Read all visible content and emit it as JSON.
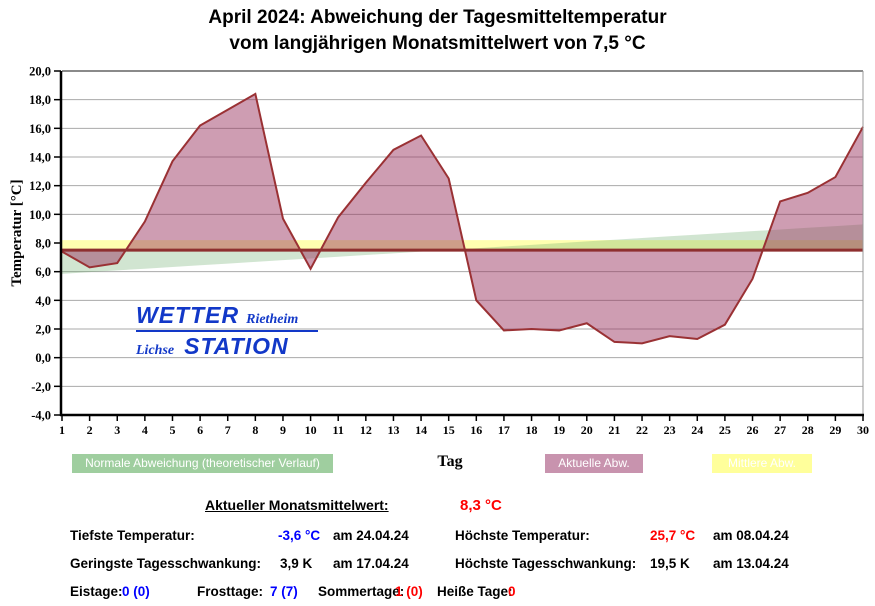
{
  "title": {
    "line1": "April 2024: Abweichung der Tagesmitteltemperatur",
    "line2": "vom langjährigen Monatsmittelwert von 7,5 °C"
  },
  "chart_data": {
    "type": "area",
    "x_label": "Tag",
    "y_label": "Temperatur [°C]",
    "ylim": [
      -4,
      20
    ],
    "x": [
      1,
      2,
      3,
      4,
      5,
      6,
      7,
      8,
      9,
      10,
      11,
      12,
      13,
      14,
      15,
      16,
      17,
      18,
      19,
      20,
      21,
      22,
      23,
      24,
      25,
      26,
      27,
      28,
      29,
      30
    ],
    "series": [
      {
        "name": "Aktuelle Abw.",
        "values": [
          7.4,
          6.3,
          6.6,
          9.5,
          13.7,
          16.2,
          17.3,
          18.4,
          9.7,
          6.2,
          9.8,
          12.2,
          14.5,
          15.5,
          12.5,
          4.0,
          1.9,
          2.0,
          1.9,
          2.4,
          1.1,
          1.0,
          1.5,
          1.3,
          2.3,
          5.5,
          10.9,
          11.5,
          12.6,
          16.1
        ]
      },
      {
        "name": "Normale Abweichung (theoretischer Verlauf)",
        "shape": "linear",
        "start": 5.85,
        "end": 9.3
      },
      {
        "name": "Mittlere Abw.",
        "band": [
          7.5,
          8.2
        ]
      }
    ],
    "baseline": 7.5,
    "y_ticks": {
      "values": [
        20,
        18,
        16,
        14,
        12,
        10,
        8,
        6,
        4,
        2,
        0,
        -2,
        -4
      ],
      "labels": [
        "20,0",
        "18,0",
        "16,0",
        "14,0",
        "12,0",
        "10,0",
        "8,0",
        "6,0",
        "4,0",
        "2,0",
        "0,0",
        "-2,0",
        "-4,0"
      ]
    },
    "colors": {
      "actual_fill": "rgba(153,51,95,0.48)",
      "actual_stroke": "#9a3134",
      "normal_fill": "rgba(102,170,102,0.30)",
      "band_fill": "#ffffb0",
      "baseline": "#8e2f2f",
      "grid": "#a9a9a9"
    }
  },
  "legend": {
    "items": [
      {
        "label": "Normale Abweichung (theoretischer Verlauf)",
        "color": "#9fce9f"
      },
      {
        "label": "Aktuelle Abw.",
        "color": "#c893ae"
      },
      {
        "label": "Mittlere Abw.",
        "color": "#ffff9b"
      }
    ]
  },
  "logo": {
    "wetter": "WETTER",
    "rietheim": "Rietheim",
    "lichse": "Lichse",
    "station": "STATION",
    "color": "#1238c8"
  },
  "summary": {
    "label": "Aktueller Monatsmittelwert:",
    "value": "8,3 °C"
  },
  "details": {
    "tiefste": {
      "label": "Tiefste Temperatur:",
      "value": "-3,6 °C",
      "date": "am 24.04.24"
    },
    "hoechste": {
      "label": "Höchste Temperatur:",
      "value": "25,7 °C",
      "date": "am 08.04.24"
    },
    "geringste": {
      "label": "Geringste Tagesschwankung:",
      "value": "3,9 K",
      "date": "am 17.04.24"
    },
    "schwankung": {
      "label": "Höchste Tagesschwankung:",
      "value": "19,5 K",
      "date": "am 13.04.24"
    }
  },
  "counts": {
    "eistage": {
      "label": "Eistage:",
      "value": "0 (0)"
    },
    "frosttage": {
      "label": "Frosttage:",
      "value": "7 (7)"
    },
    "sommertage": {
      "label": "Sommertage:",
      "value": "1 (0)"
    },
    "heisse": {
      "label": "Heiße Tage:",
      "value": "0"
    }
  }
}
